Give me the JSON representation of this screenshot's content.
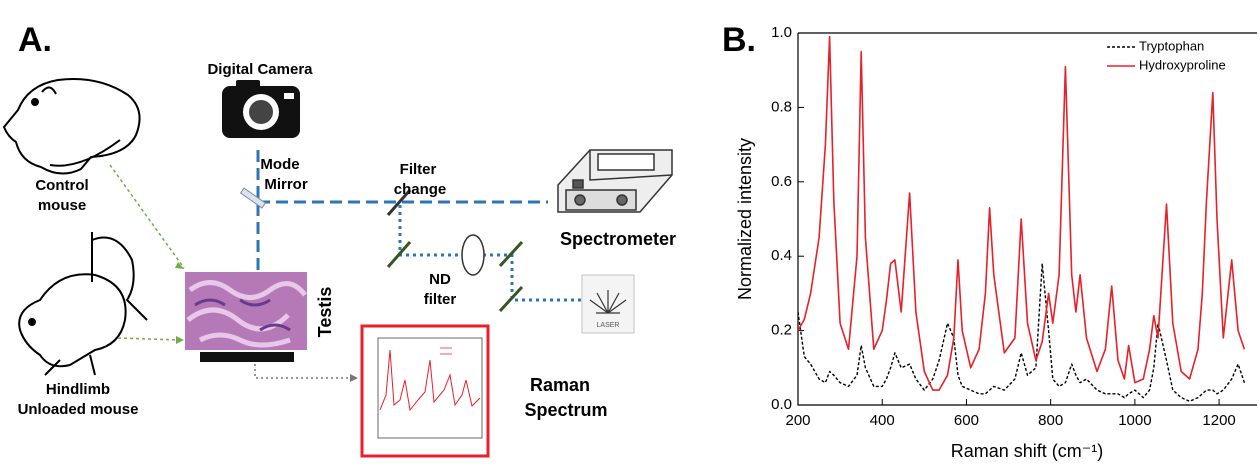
{
  "panel_a": {
    "label": "A.",
    "camera": "Digital Camera",
    "mode_mirror": [
      "Mode",
      "Mirror"
    ],
    "filter_change": [
      "Filter",
      "change"
    ],
    "spectrometer": "Spectrometer",
    "nd_filter": [
      "ND",
      "filter"
    ],
    "laser": "LASER",
    "control_mouse": [
      "Control",
      "mouse"
    ],
    "unloaded_mouse": [
      "Hindlimb",
      "Unloaded mouse"
    ],
    "testis": "Testis",
    "raman_spectrum": [
      "Raman",
      "Spectrum"
    ]
  },
  "chart_data": {
    "type": "line",
    "panel_label": "B.",
    "x_label": "Raman shift (cm⁻¹)",
    "y_label": "Normalized intensity",
    "x": [
      200,
      215,
      230,
      250,
      265,
      275,
      285,
      300,
      320,
      340,
      350,
      360,
      380,
      400,
      410,
      420,
      430,
      445,
      465,
      480,
      500,
      520,
      535,
      555,
      570,
      580,
      590,
      610,
      630,
      645,
      655,
      665,
      690,
      715,
      730,
      745,
      765,
      780,
      795,
      805,
      820,
      835,
      850,
      860,
      870,
      885,
      910,
      930,
      945,
      960,
      975,
      985,
      1000,
      1020,
      1035,
      1045,
      1055,
      1075,
      1090,
      1110,
      1130,
      1150,
      1160,
      1170,
      1185,
      1195,
      1210,
      1230,
      1245,
      1260
    ],
    "series": [
      {
        "name": "Tryptophan",
        "color": "#000000",
        "dash": "dotted",
        "values": [
          0.25,
          0.13,
          0.11,
          0.07,
          0.06,
          0.09,
          0.08,
          0.06,
          0.05,
          0.08,
          0.16,
          0.1,
          0.05,
          0.05,
          0.07,
          0.1,
          0.14,
          0.1,
          0.11,
          0.07,
          0.04,
          0.07,
          0.12,
          0.22,
          0.18,
          0.08,
          0.05,
          0.04,
          0.03,
          0.03,
          0.04,
          0.05,
          0.04,
          0.07,
          0.14,
          0.08,
          0.1,
          0.38,
          0.2,
          0.07,
          0.05,
          0.06,
          0.11,
          0.08,
          0.06,
          0.07,
          0.04,
          0.03,
          0.03,
          0.03,
          0.02,
          0.03,
          0.04,
          0.02,
          0.04,
          0.1,
          0.22,
          0.12,
          0.04,
          0.02,
          0.01,
          0.02,
          0.03,
          0.04,
          0.04,
          0.03,
          0.04,
          0.07,
          0.11,
          0.06
        ]
      },
      {
        "name": "Hydroxyproline",
        "color": "#e8202a",
        "dash": "solid",
        "values": [
          0.2,
          0.23,
          0.3,
          0.45,
          0.7,
          0.99,
          0.55,
          0.22,
          0.15,
          0.4,
          0.95,
          0.45,
          0.15,
          0.2,
          0.28,
          0.38,
          0.39,
          0.25,
          0.57,
          0.25,
          0.09,
          0.04,
          0.04,
          0.08,
          0.18,
          0.39,
          0.2,
          0.1,
          0.15,
          0.3,
          0.53,
          0.35,
          0.14,
          0.18,
          0.5,
          0.22,
          0.12,
          0.17,
          0.3,
          0.22,
          0.35,
          0.91,
          0.35,
          0.25,
          0.35,
          0.18,
          0.09,
          0.15,
          0.32,
          0.12,
          0.07,
          0.16,
          0.06,
          0.07,
          0.15,
          0.24,
          0.18,
          0.54,
          0.22,
          0.09,
          0.07,
          0.15,
          0.3,
          0.55,
          0.84,
          0.5,
          0.18,
          0.39,
          0.2,
          0.15
        ]
      }
    ],
    "xlim": [
      200,
      1290
    ],
    "ylim": [
      0,
      1
    ],
    "xticks": [
      200,
      400,
      600,
      800,
      1000,
      1200
    ],
    "yticks": [
      {
        "value": 0,
        "label": "0.0"
      },
      0.2,
      0.4,
      0.6,
      0.8,
      {
        "value": 1,
        "label": "1.0"
      }
    ],
    "grid": false,
    "legend": "upper right"
  }
}
